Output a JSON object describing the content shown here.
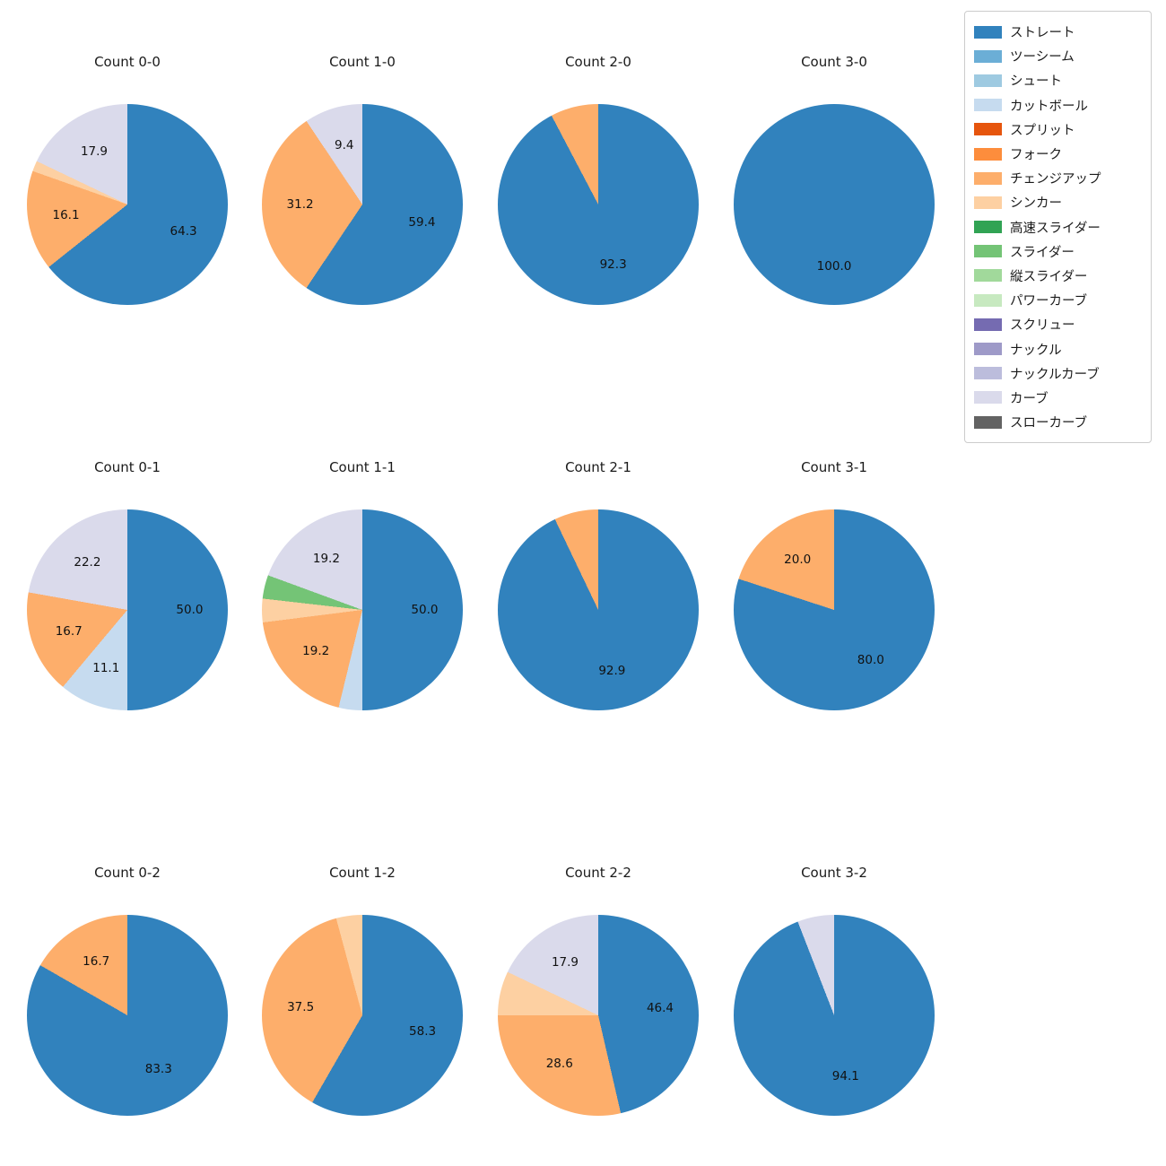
{
  "figure": {
    "background": "#ffffff"
  },
  "legend": {
    "position": "top-right",
    "items": [
      {
        "label": "ストレート",
        "color": "#3182bd"
      },
      {
        "label": "ツーシーム",
        "color": "#6baed6"
      },
      {
        "label": "シュート",
        "color": "#9ecae1"
      },
      {
        "label": "カットボール",
        "color": "#c6dbef"
      },
      {
        "label": "スプリット",
        "color": "#e6550d"
      },
      {
        "label": "フォーク",
        "color": "#fd8d3c"
      },
      {
        "label": "チェンジアップ",
        "color": "#fdae6b"
      },
      {
        "label": "シンカー",
        "color": "#fdd0a2"
      },
      {
        "label": "高速スライダー",
        "color": "#31a354"
      },
      {
        "label": "スライダー",
        "color": "#74c476"
      },
      {
        "label": "縦スライダー",
        "color": "#a1d99b"
      },
      {
        "label": "パワーカーブ",
        "color": "#c7e9c0"
      },
      {
        "label": "スクリュー",
        "color": "#756bb1"
      },
      {
        "label": "ナックル",
        "color": "#9e9ac8"
      },
      {
        "label": "ナックルカーブ",
        "color": "#bcbddc"
      },
      {
        "label": "カーブ",
        "color": "#dadaeb"
      },
      {
        "label": "スローカーブ",
        "color": "#636363"
      }
    ]
  },
  "chart_data": [
    {
      "type": "pie",
      "title": "Count 0-0",
      "slices": [
        {
          "label": "ストレート",
          "value": 64.3,
          "pct_text": "64.3",
          "color": "#3182bd"
        },
        {
          "label": "チェンジアップ",
          "value": 16.1,
          "pct_text": "16.1",
          "color": "#fdae6b"
        },
        {
          "label": "シンカー",
          "value": 1.7,
          "color": "#fdd0a2"
        },
        {
          "label": "カーブ",
          "value": 17.9,
          "pct_text": "17.9",
          "color": "#dadaeb"
        }
      ]
    },
    {
      "type": "pie",
      "title": "Count 1-0",
      "slices": [
        {
          "label": "ストレート",
          "value": 59.4,
          "pct_text": "59.4",
          "color": "#3182bd"
        },
        {
          "label": "チェンジアップ",
          "value": 31.2,
          "pct_text": "31.2",
          "color": "#fdae6b"
        },
        {
          "label": "カーブ",
          "value": 9.4,
          "pct_text": "9.4",
          "color": "#dadaeb"
        }
      ]
    },
    {
      "type": "pie",
      "title": "Count 2-0",
      "slices": [
        {
          "label": "ストレート",
          "value": 92.3,
          "pct_text": "92.3",
          "color": "#3182bd"
        },
        {
          "label": "チェンジアップ",
          "value": 7.7,
          "color": "#fdae6b"
        }
      ]
    },
    {
      "type": "pie",
      "title": "Count 3-0",
      "slices": [
        {
          "label": "ストレート",
          "value": 100.0,
          "pct_text": "100.0",
          "color": "#3182bd"
        }
      ]
    },
    {
      "type": "pie",
      "title": "Count 0-1",
      "slices": [
        {
          "label": "ストレート",
          "value": 50.0,
          "pct_text": "50.0",
          "color": "#3182bd"
        },
        {
          "label": "カットボール",
          "value": 11.1,
          "pct_text": "11.1",
          "color": "#c6dbef"
        },
        {
          "label": "チェンジアップ",
          "value": 16.7,
          "pct_text": "16.7",
          "color": "#fdae6b"
        },
        {
          "label": "カーブ",
          "value": 22.2,
          "pct_text": "22.2",
          "color": "#dadaeb"
        }
      ]
    },
    {
      "type": "pie",
      "title": "Count 1-1",
      "slices": [
        {
          "label": "ストレート",
          "value": 50.0,
          "pct_text": "50.0",
          "color": "#3182bd"
        },
        {
          "label": "カットボール",
          "value": 3.8,
          "color": "#c6dbef"
        },
        {
          "label": "チェンジアップ",
          "value": 19.2,
          "pct_text": "19.2",
          "color": "#fdae6b"
        },
        {
          "label": "シンカー",
          "value": 3.8,
          "color": "#fdd0a2"
        },
        {
          "label": "スライダー",
          "value": 3.8,
          "color": "#74c476"
        },
        {
          "label": "カーブ",
          "value": 19.2,
          "pct_text": "19.2",
          "color": "#dadaeb"
        }
      ]
    },
    {
      "type": "pie",
      "title": "Count 2-1",
      "slices": [
        {
          "label": "ストレート",
          "value": 92.9,
          "pct_text": "92.9",
          "color": "#3182bd"
        },
        {
          "label": "チェンジアップ",
          "value": 7.1,
          "color": "#fdae6b"
        }
      ]
    },
    {
      "type": "pie",
      "title": "Count 3-1",
      "slices": [
        {
          "label": "ストレート",
          "value": 80.0,
          "pct_text": "80.0",
          "color": "#3182bd"
        },
        {
          "label": "チェンジアップ",
          "value": 20.0,
          "pct_text": "20.0",
          "color": "#fdae6b"
        }
      ]
    },
    {
      "type": "pie",
      "title": "Count 0-2",
      "slices": [
        {
          "label": "ストレート",
          "value": 83.3,
          "pct_text": "83.3",
          "color": "#3182bd"
        },
        {
          "label": "チェンジアップ",
          "value": 16.7,
          "pct_text": "16.7",
          "color": "#fdae6b"
        }
      ]
    },
    {
      "type": "pie",
      "title": "Count 1-2",
      "slices": [
        {
          "label": "ストレート",
          "value": 58.3,
          "pct_text": "58.3",
          "color": "#3182bd"
        },
        {
          "label": "チェンジアップ",
          "value": 37.5,
          "pct_text": "37.5",
          "color": "#fdae6b"
        },
        {
          "label": "シンカー",
          "value": 4.2,
          "color": "#fdd0a2"
        }
      ]
    },
    {
      "type": "pie",
      "title": "Count 2-2",
      "slices": [
        {
          "label": "ストレート",
          "value": 46.4,
          "pct_text": "46.4",
          "color": "#3182bd"
        },
        {
          "label": "チェンジアップ",
          "value": 28.6,
          "pct_text": "28.6",
          "color": "#fdae6b"
        },
        {
          "label": "シンカー",
          "value": 7.1,
          "color": "#fdd0a2"
        },
        {
          "label": "カーブ",
          "value": 17.9,
          "pct_text": "17.9",
          "color": "#dadaeb"
        }
      ]
    },
    {
      "type": "pie",
      "title": "Count 3-2",
      "slices": [
        {
          "label": "ストレート",
          "value": 94.1,
          "pct_text": "94.1",
          "color": "#3182bd"
        },
        {
          "label": "カーブ",
          "value": 5.9,
          "color": "#dadaeb"
        }
      ]
    }
  ]
}
